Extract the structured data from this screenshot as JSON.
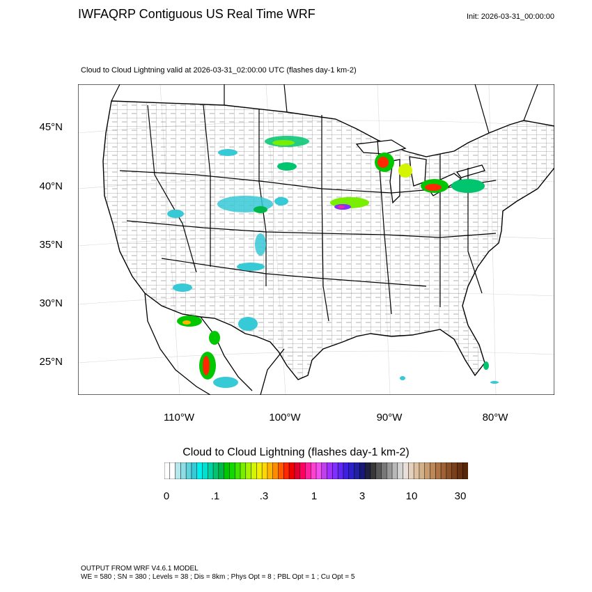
{
  "header": {
    "title": "IWFAQRP Contiguous US Real Time WRF",
    "init": "Init: 2026-03-31_00:00:00"
  },
  "map": {
    "subtitle": "Cloud to Cloud Lightning valid at 2026-03-31_02:00:00 UTC   (flashes day-1 km-2)",
    "lat_labels": [
      "45°N",
      "40°N",
      "35°N",
      "30°N",
      "25°N"
    ],
    "lon_labels": [
      "110°W",
      "100°W",
      "90°W",
      "80°W"
    ]
  },
  "colorbar": {
    "title": "Cloud to Cloud Lightning  (flashes day-1 km-2)",
    "labels": [
      "0",
      ".1",
      ".3",
      "1",
      "3",
      "10",
      "30"
    ],
    "colors": [
      "#ffffff",
      "#ffffff",
      "#b4e8ec",
      "#8edde4",
      "#5fd2dc",
      "#36c9d6",
      "#00f0f0",
      "#00e0d0",
      "#00d2a4",
      "#00c46e",
      "#00b84a",
      "#00c800",
      "#10d800",
      "#40e400",
      "#78ee00",
      "#a8f400",
      "#d4f400",
      "#f0f000",
      "#ffd800",
      "#ffb400",
      "#ff8c00",
      "#ff5a00",
      "#ff2800",
      "#f00000",
      "#e00030",
      "#ff0060",
      "#ff20a0",
      "#ff40d0",
      "#f050f0",
      "#c040f0",
      "#a030ff",
      "#8030ff",
      "#6028f0",
      "#4020e0",
      "#2c20c8",
      "#2020a0",
      "#18187a",
      "#202040",
      "#383838",
      "#585858",
      "#787878",
      "#989898",
      "#b8b8b8",
      "#d4d4d4",
      "#e8e0d8",
      "#e4d0bc",
      "#dcc0a0",
      "#d2b088",
      "#c89c70",
      "#bc885a",
      "#ae7446",
      "#9e6236",
      "#8c5028",
      "#7a401c",
      "#683212",
      "#562608"
    ]
  },
  "footer": {
    "line1": "OUTPUT FROM WRF V4.6.1 MODEL",
    "line2": "WE = 580 ; SN = 380 ; Levels = 38 ; Dis = 8km ; Phys Opt = 8 ; PBL Opt = 1 ; Cu Opt = 5"
  }
}
